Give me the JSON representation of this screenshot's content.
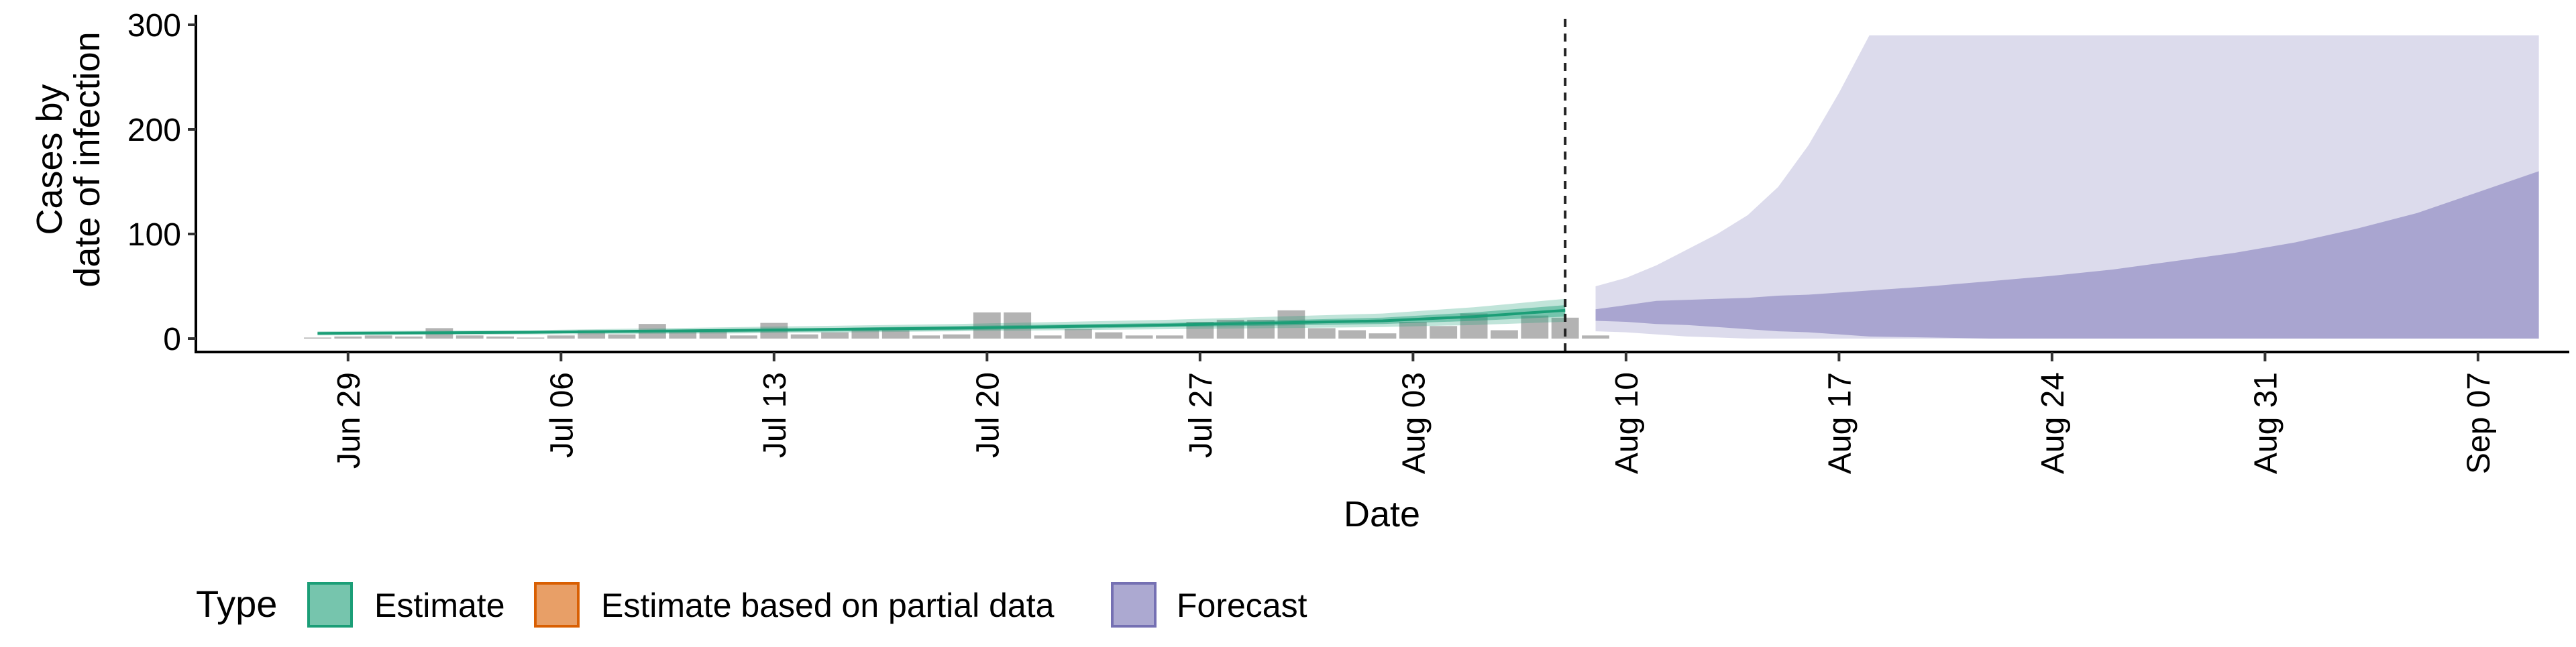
{
  "chart_data": {
    "type": "area",
    "xlabel": "Date",
    "ylabel_lines": [
      "Cases by",
      "date of infection"
    ],
    "ylim": [
      0,
      300
    ],
    "yticks": [
      0,
      100,
      200,
      300
    ],
    "xlim": [
      "2020-06-24",
      "2020-09-10"
    ],
    "xticks": [
      {
        "date": "2020-06-29",
        "label": "Jun 29"
      },
      {
        "date": "2020-07-06",
        "label": "Jul 06"
      },
      {
        "date": "2020-07-13",
        "label": "Jul 13"
      },
      {
        "date": "2020-07-20",
        "label": "Jul 20"
      },
      {
        "date": "2020-07-27",
        "label": "Jul 27"
      },
      {
        "date": "2020-08-03",
        "label": "Aug 03"
      },
      {
        "date": "2020-08-10",
        "label": "Aug 10"
      },
      {
        "date": "2020-08-17",
        "label": "Aug 17"
      },
      {
        "date": "2020-08-24",
        "label": "Aug 24"
      },
      {
        "date": "2020-08-31",
        "label": "Aug 31"
      },
      {
        "date": "2020-09-07",
        "label": "Sep 07"
      }
    ],
    "vline_date": "2020-08-08",
    "reported_cases": {
      "dates": [
        "2020-06-28",
        "2020-06-29",
        "2020-06-30",
        "2020-07-01",
        "2020-07-02",
        "2020-07-03",
        "2020-07-04",
        "2020-07-05",
        "2020-07-06",
        "2020-07-07",
        "2020-07-08",
        "2020-07-09",
        "2020-07-10",
        "2020-07-11",
        "2020-07-12",
        "2020-07-13",
        "2020-07-14",
        "2020-07-15",
        "2020-07-16",
        "2020-07-17",
        "2020-07-18",
        "2020-07-19",
        "2020-07-20",
        "2020-07-21",
        "2020-07-22",
        "2020-07-23",
        "2020-07-24",
        "2020-07-25",
        "2020-07-26",
        "2020-07-27",
        "2020-07-28",
        "2020-07-29",
        "2020-07-30",
        "2020-07-31",
        "2020-08-01",
        "2020-08-02",
        "2020-08-03",
        "2020-08-04",
        "2020-08-05",
        "2020-08-06",
        "2020-08-07",
        "2020-08-08",
        "2020-08-09"
      ],
      "values": [
        1,
        2,
        3,
        2,
        10,
        3,
        2,
        1,
        3,
        8,
        4,
        14,
        7,
        9,
        3,
        15,
        4,
        6,
        9,
        8,
        3,
        4,
        25,
        25,
        3,
        9,
        6,
        3,
        3,
        16,
        18,
        18,
        27,
        10,
        8,
        5,
        16,
        12,
        24,
        8,
        22,
        20,
        3
      ]
    },
    "estimate": {
      "name": "Estimate",
      "dates": [
        "2020-06-28",
        "2020-07-05",
        "2020-07-12",
        "2020-07-19",
        "2020-07-26",
        "2020-08-02",
        "2020-08-05",
        "2020-08-08"
      ],
      "median": [
        5,
        6,
        8,
        10,
        13,
        17,
        21,
        27
      ],
      "lower_50": [
        4,
        5,
        6,
        8,
        11,
        14,
        17,
        21
      ],
      "upper_50": [
        6,
        7,
        9,
        12,
        15,
        20,
        25,
        32
      ],
      "lower_90": [
        3,
        4,
        5,
        7,
        9,
        11,
        13,
        16
      ],
      "upper_90": [
        7,
        8,
        11,
        14,
        18,
        24,
        30,
        38
      ]
    },
    "forecast": {
      "name": "Forecast",
      "dates": [
        "2020-08-09",
        "2020-08-10",
        "2020-08-11",
        "2020-08-12",
        "2020-08-13",
        "2020-08-14",
        "2020-08-15",
        "2020-08-16",
        "2020-08-17",
        "2020-08-18",
        "2020-08-20",
        "2020-08-22",
        "2020-08-24",
        "2020-08-26",
        "2020-08-28",
        "2020-08-30",
        "2020-09-01",
        "2020-09-03",
        "2020-09-05",
        "2020-09-07",
        "2020-09-09"
      ],
      "lower_50": [
        17,
        16,
        14,
        13,
        11,
        9,
        7,
        6,
        4,
        2,
        1,
        0,
        0,
        0,
        0,
        0,
        0,
        0,
        0,
        0,
        0
      ],
      "upper_50": [
        28,
        32,
        36,
        37,
        38,
        39,
        41,
        42,
        44,
        46,
        50,
        55,
        60,
        66,
        74,
        82,
        92,
        105,
        120,
        140,
        160
      ],
      "lower_90": [
        7,
        6,
        4,
        2,
        1,
        0,
        0,
        0,
        0,
        0,
        0,
        0,
        0,
        0,
        0,
        0,
        0,
        0,
        0,
        0,
        0
      ],
      "upper_90": [
        50,
        58,
        70,
        85,
        100,
        118,
        145,
        185,
        235,
        290,
        290,
        290,
        290,
        290,
        290,
        290,
        290,
        290,
        290,
        290,
        290
      ]
    },
    "legend": {
      "title": "Type",
      "placement": "bottom-left",
      "items": [
        {
          "label": "Estimate",
          "color": "#1b9e77"
        },
        {
          "label": "Estimate based on partial data",
          "color": "#d95f02"
        },
        {
          "label": "Forecast",
          "color": "#7570b3"
        }
      ]
    },
    "colors": {
      "estimate": "#1b9e77",
      "partial": "#d95f02",
      "forecast": "#7570b3",
      "bars": "#b3b3b3"
    }
  }
}
